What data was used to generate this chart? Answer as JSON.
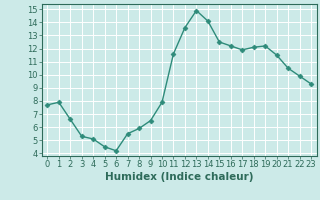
{
  "x": [
    0,
    1,
    2,
    3,
    4,
    5,
    6,
    7,
    8,
    9,
    10,
    11,
    12,
    13,
    14,
    15,
    16,
    17,
    18,
    19,
    20,
    21,
    22,
    23
  ],
  "y": [
    7.7,
    7.9,
    6.6,
    5.3,
    5.1,
    4.5,
    4.2,
    5.5,
    5.9,
    6.5,
    7.9,
    11.6,
    13.6,
    14.9,
    14.1,
    12.5,
    12.2,
    11.9,
    12.1,
    12.2,
    11.5,
    10.5,
    9.9,
    9.3
  ],
  "xlabel": "Humidex (Indice chaleur)",
  "xlim": [
    -0.5,
    23.5
  ],
  "ylim": [
    3.8,
    15.4
  ],
  "yticks": [
    4,
    5,
    6,
    7,
    8,
    9,
    10,
    11,
    12,
    13,
    14,
    15
  ],
  "xticks": [
    0,
    1,
    2,
    3,
    4,
    5,
    6,
    7,
    8,
    9,
    10,
    11,
    12,
    13,
    14,
    15,
    16,
    17,
    18,
    19,
    20,
    21,
    22,
    23
  ],
  "line_color": "#2e8b7a",
  "marker": "D",
  "marker_size": 2.5,
  "bg_color": "#cceae8",
  "grid_color": "#ffffff",
  "label_color": "#2e6b5a",
  "spine_color": "#2e6b5a",
  "xlabel_fontsize": 7.5,
  "tick_fontsize": 6.0,
  "linewidth": 1.0
}
